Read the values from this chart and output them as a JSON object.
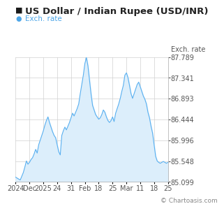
{
  "title": "US Dollar / Indian Rupee (USD/INR)",
  "legend_label": "Exch. rate",
  "ylabel": "Exch. rate",
  "watermark": "© Chartoasis.com",
  "title_icon_color": "#1a1a1a",
  "legend_dot_color": "#4da6e8",
  "line_color": "#5ab0f0",
  "fill_color": "#dceefb",
  "background_color": "#ffffff",
  "grid_color": "#d0d0d0",
  "ylim": [
    85.099,
    87.789
  ],
  "yticks": [
    85.099,
    85.548,
    85.996,
    86.444,
    86.893,
    87.341,
    87.789
  ],
  "x_tick_labels": [
    "2024",
    "Dec",
    "2025",
    "24",
    "31",
    "Feb",
    "18",
    "25",
    "Mar",
    "11",
    "18",
    "25"
  ],
  "title_fontsize": 9.5,
  "axis_fontsize": 7,
  "watermark_fontsize": 6.5,
  "data_y": [
    85.2,
    85.18,
    85.16,
    85.14,
    85.22,
    85.3,
    85.42,
    85.55,
    85.48,
    85.52,
    85.58,
    85.62,
    85.7,
    85.8,
    85.72,
    85.9,
    86.0,
    86.1,
    86.2,
    86.32,
    86.42,
    86.5,
    86.38,
    86.28,
    86.18,
    86.1,
    86.05,
    85.9,
    85.75,
    85.68,
    86.1,
    86.2,
    86.28,
    86.22,
    86.3,
    86.38,
    86.48,
    86.58,
    86.52,
    86.6,
    86.68,
    86.78,
    87.0,
    87.2,
    87.4,
    87.65,
    87.78,
    87.6,
    87.3,
    87.0,
    86.75,
    86.65,
    86.55,
    86.5,
    86.45,
    86.48,
    86.55,
    86.65,
    86.6,
    86.5,
    86.42,
    86.38,
    86.42,
    86.5,
    86.4,
    86.58,
    86.68,
    86.78,
    86.9,
    87.05,
    87.18,
    87.4,
    87.45,
    87.35,
    87.18,
    87.0,
    86.9,
    87.0,
    87.1,
    87.2,
    87.25,
    87.15,
    87.05,
    86.95,
    86.88,
    86.78,
    86.6,
    86.48,
    86.3,
    86.15,
    85.9,
    85.65,
    85.55,
    85.52,
    85.5,
    85.52,
    85.54,
    85.52,
    85.5,
    85.52
  ]
}
